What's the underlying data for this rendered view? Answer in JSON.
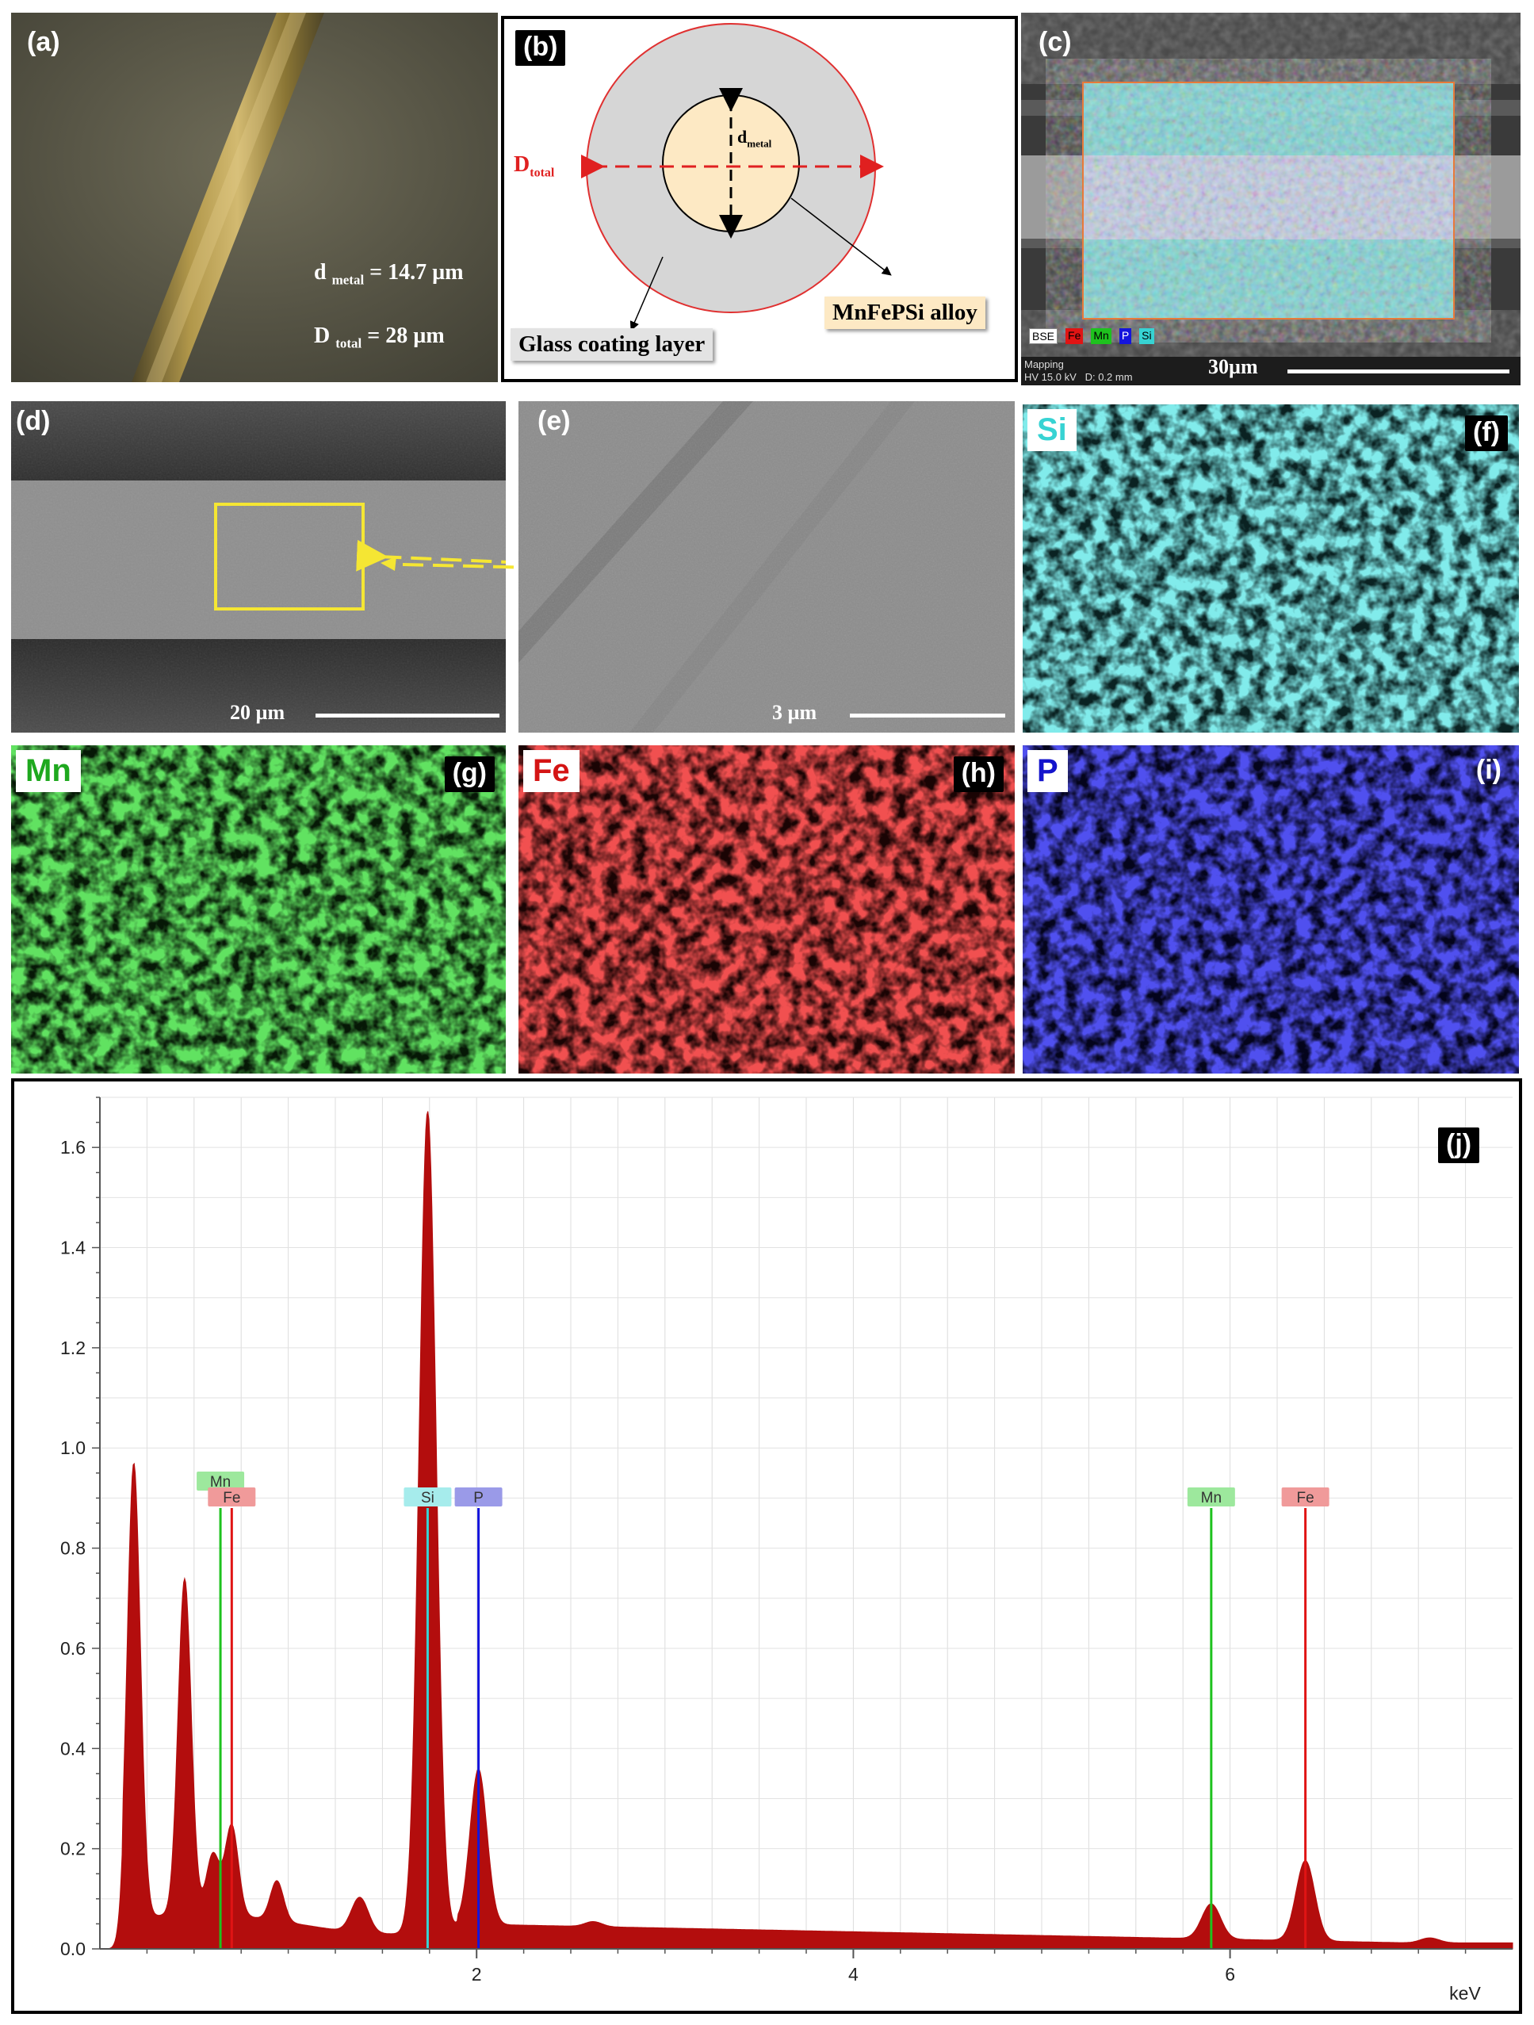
{
  "panels": {
    "a": {
      "label": "(a)",
      "d_metal_sym": "d",
      "d_metal_sub": "metal",
      "d_metal_val": "= 14.7 µm",
      "D_total_sym": "D",
      "D_total_sub": "total",
      "D_total_val": "= 28 µm"
    },
    "b": {
      "label": "(b)",
      "D_total_sym": "D",
      "D_total_sub": "total",
      "d_metal_sym": "d",
      "d_metal_sub": "metal",
      "alloy_label": "MnFePSi alloy",
      "glass_label": "Glass coating layer"
    },
    "c": {
      "label": "(c)",
      "legend": [
        "BSE",
        "Fe",
        "Mn",
        "P",
        "Si"
      ],
      "info_line1": "Mapping",
      "info_line2": "HV 15.0 kV   D: 0.2 mm",
      "scale": "30µm"
    },
    "d": {
      "label": "(d)",
      "scale": "20 µm"
    },
    "e": {
      "label": "(e)",
      "scale": "3 µm"
    },
    "f": {
      "label": "(f)",
      "element": "Si"
    },
    "g": {
      "label": "(g)",
      "element": "Mn"
    },
    "h": {
      "label": "(h)",
      "element": "Fe"
    },
    "i": {
      "label": "(i)",
      "element": "P"
    },
    "j": {
      "label": "(j)"
    }
  },
  "colors": {
    "si": "#37d3d3",
    "mn": "#1ec21e",
    "fe": "#e01414",
    "p": "#1414dc",
    "spectrum": "#b30d0d",
    "accent_red": "#e02020",
    "yellow": "#f5e633"
  },
  "chart_data": {
    "type": "area",
    "title": "",
    "xlabel": "keV",
    "ylabel": "",
    "xlim": [
      0,
      7.5
    ],
    "ylim": [
      0,
      1.7
    ],
    "xticks": [
      2,
      4,
      6
    ],
    "yticks": [
      0.0,
      0.2,
      0.4,
      0.6,
      0.8,
      1.0,
      1.2,
      1.4,
      1.6
    ],
    "grid": true,
    "peaks": [
      {
        "x": 0.18,
        "y": 0.95
      },
      {
        "x": 0.45,
        "y": 0.71
      },
      {
        "x": 0.6,
        "y": 0.16
      },
      {
        "x": 0.7,
        "y": 0.22
      },
      {
        "x": 0.94,
        "y": 0.12
      },
      {
        "x": 1.38,
        "y": 0.11
      },
      {
        "x": 1.74,
        "y": 1.68
      },
      {
        "x": 2.01,
        "y": 0.35
      },
      {
        "x": 2.62,
        "y": 0.05
      },
      {
        "x": 3.3,
        "y": 0.04
      },
      {
        "x": 5.9,
        "y": 0.11
      },
      {
        "x": 6.4,
        "y": 0.2
      },
      {
        "x": 7.06,
        "y": 0.05
      }
    ],
    "element_markers": [
      {
        "name": "Mn",
        "x": 0.64,
        "height": 0.88
      },
      {
        "name": "Fe",
        "x": 0.7,
        "height": 0.88
      },
      {
        "name": "Si",
        "x": 1.74,
        "height": 0.88
      },
      {
        "name": "P",
        "x": 2.01,
        "height": 0.88
      },
      {
        "name": "Mn",
        "x": 5.9,
        "height": 0.88
      },
      {
        "name": "Fe",
        "x": 6.4,
        "height": 0.88
      }
    ]
  }
}
